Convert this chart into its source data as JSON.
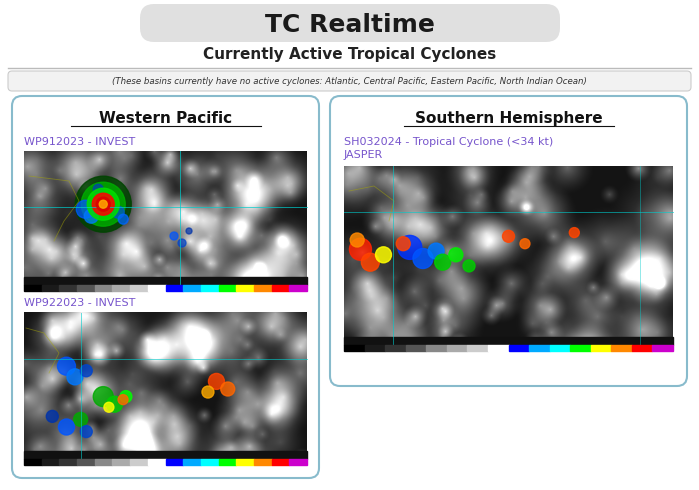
{
  "title": "TC Realtime",
  "subtitle": "Currently Active Tropical Cyclones",
  "inactive_notice": "(These basins currently have no active cyclones: Atlantic, Central Pacific, Eastern Pacific, North Indian Ocean)",
  "bg_color": "#ffffff",
  "title_bg_color": "#e0e0e0",
  "panel_border_color": "#88bbcc",
  "separator_color": "#cccccc",
  "left_panel_title": "Western Pacific",
  "right_panel_title": "Southern Hemisphere",
  "left_link1": "WP912023 - INVEST",
  "left_link2": "WP922023 - INVEST",
  "right_link1": "SH032024 - Tropical Cyclone (<34 kt)",
  "right_link2": "JASPER",
  "link_color": "#7755cc",
  "fig_width": 6.99,
  "fig_height": 4.9
}
